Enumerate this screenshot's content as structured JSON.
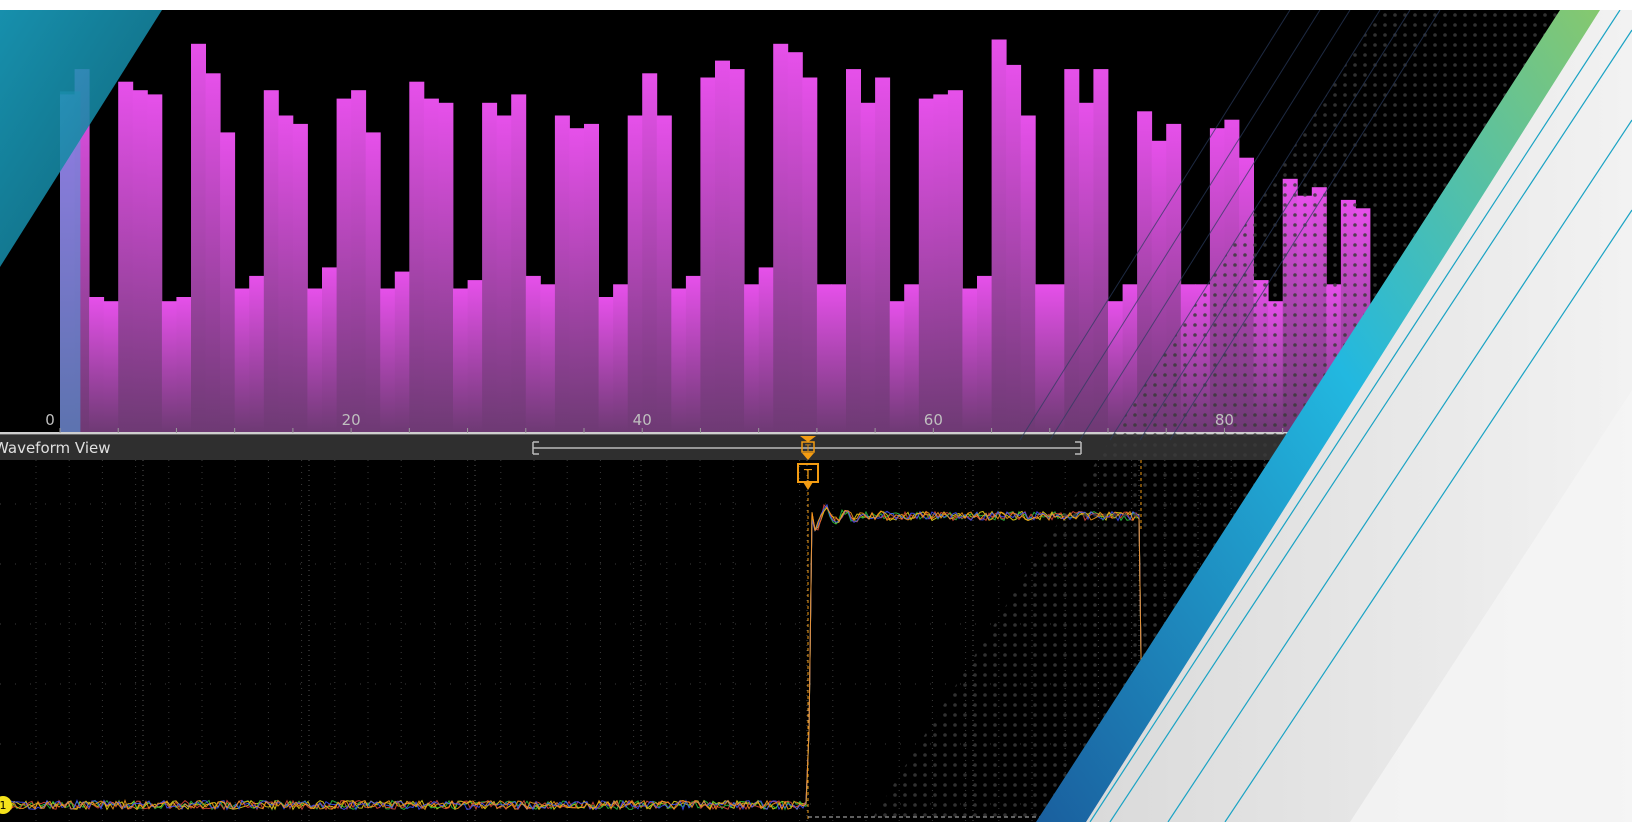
{
  "waveform_view": {
    "title": "Waveform View",
    "trigger_label": "T",
    "channel_label": "1"
  },
  "colors": {
    "background": "#000000",
    "bar_fill": "#e44ee8",
    "bar_fill_dark": "#7a3f80",
    "highlight_bar": "#4fa3e0",
    "trigger_marker": "#f39c12",
    "channel_badge": "#f5e21b",
    "trace_colors": [
      "#f5e21b",
      "#2ecc40",
      "#e74c3c",
      "#3f51ff",
      "#ff9f1a"
    ],
    "accent_teal": "#1aa3c4",
    "accent_green": "#7cc576"
  },
  "chart_data": {
    "type": "bar",
    "xlim": [
      0,
      90
    ],
    "ylim": [
      0,
      100
    ],
    "x_ticks": [
      "0",
      "20",
      "40",
      "60",
      "80"
    ],
    "grid": false,
    "values": [
      80,
      86,
      32,
      31,
      83,
      81,
      80,
      31,
      32,
      92,
      85,
      71,
      34,
      37,
      81,
      75,
      73,
      34,
      39,
      79,
      81,
      71,
      34,
      38,
      83,
      79,
      78,
      34,
      36,
      78,
      75,
      80,
      37,
      35,
      75,
      72,
      73,
      32,
      35,
      75,
      85,
      75,
      34,
      37,
      84,
      88,
      86,
      35,
      39,
      92,
      90,
      84,
      35,
      35,
      86,
      78,
      84,
      31,
      35,
      79,
      80,
      81,
      34,
      37,
      93,
      87,
      75,
      35,
      35,
      86,
      78,
      86,
      31,
      35,
      76,
      69,
      73,
      35,
      35,
      72,
      74,
      65,
      36,
      31,
      60,
      56,
      58,
      35,
      55,
      53
    ]
  }
}
